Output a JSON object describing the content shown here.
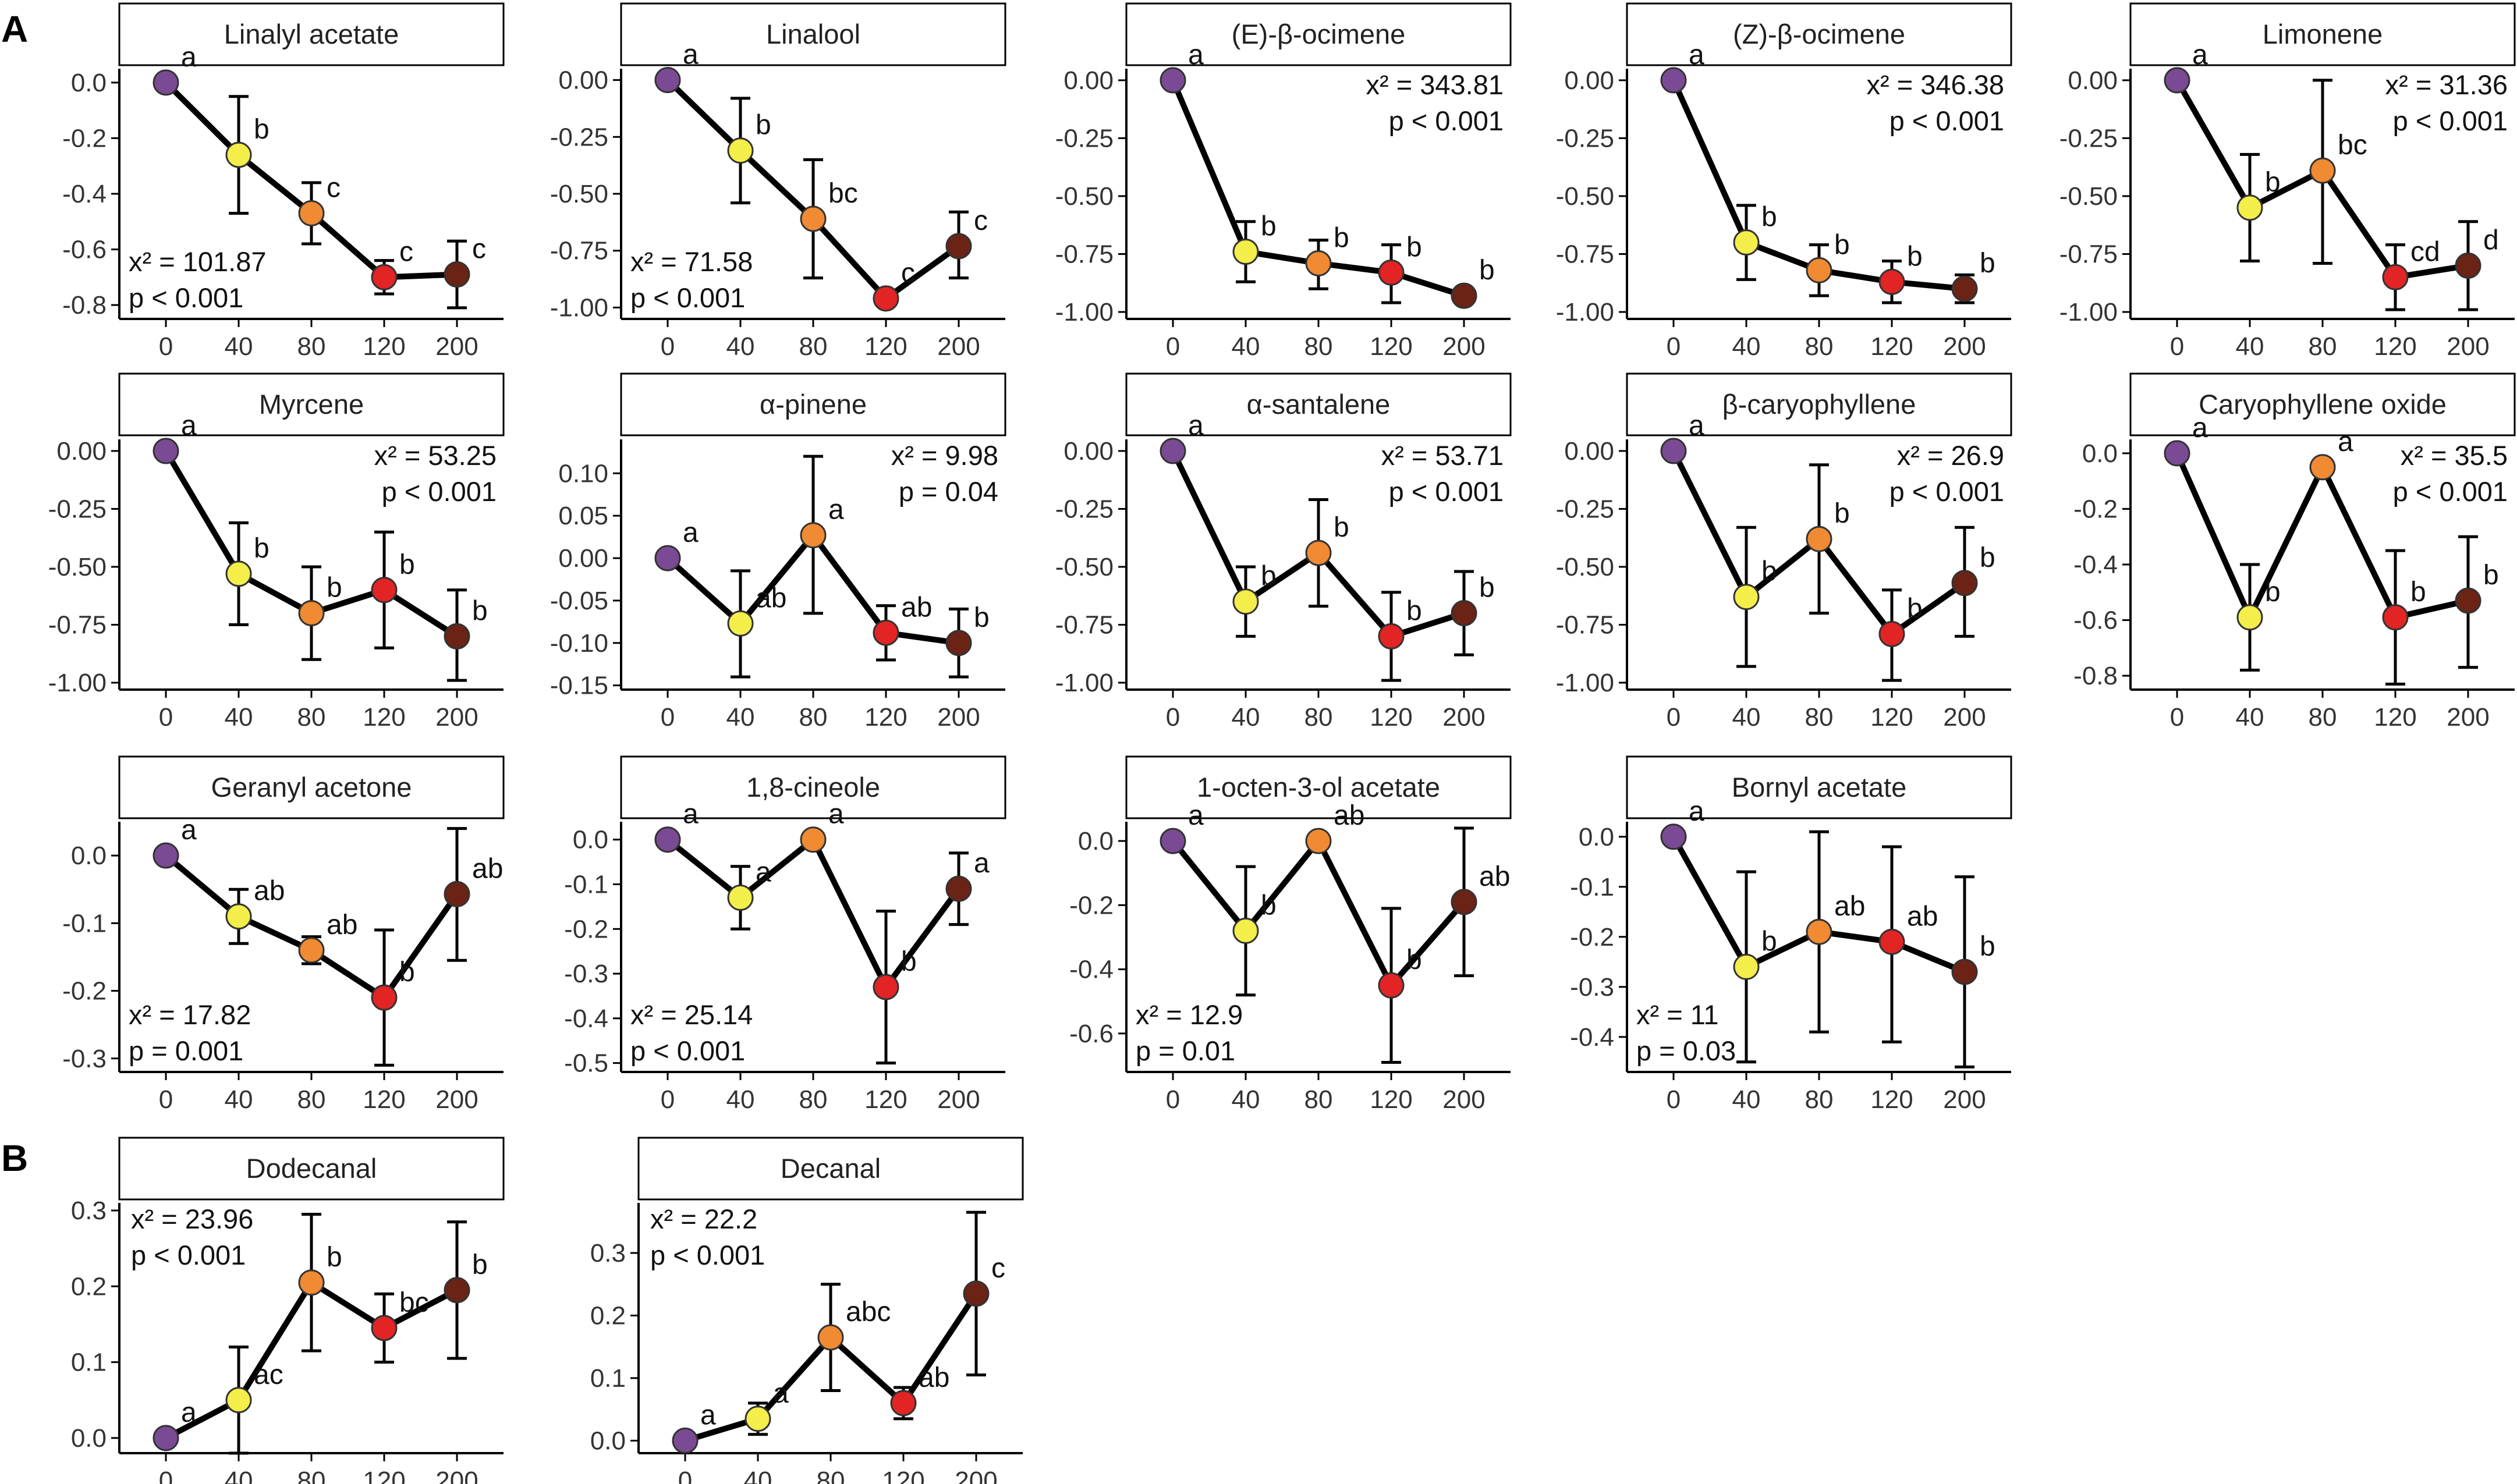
{
  "panel_labels": [
    "A",
    "B"
  ],
  "colors": {
    "0": "#7b4a94",
    "40": "#f3ee4a",
    "80": "#f08a33",
    "120": "#e22424",
    "200": "#6b2316",
    "line": "#000000",
    "strip_fill": "#ffffff"
  },
  "chart_data": [
    {
      "type": "line",
      "panel": "A",
      "title": "Linalyl acetate",
      "x": [
        0,
        40,
        80,
        120,
        200
      ],
      "values": [
        0,
        -0.26,
        -0.47,
        -0.7,
        -0.69
      ],
      "err_low": [
        0,
        -0.47,
        -0.58,
        -0.76,
        -0.81
      ],
      "err_high": [
        0,
        -0.05,
        -0.36,
        -0.64,
        -0.57
      ],
      "letters": [
        "a",
        "b",
        "c",
        "c",
        "c"
      ],
      "ylim": [
        -0.85,
        0.05
      ],
      "yticks": [
        0.0,
        -0.2,
        -0.4,
        -0.6,
        -0.8
      ],
      "ytick_labels": [
        "0.0",
        "-0.2",
        "-0.4",
        "-0.6",
        "-0.8"
      ],
      "stat_chi": "x² = 101.87",
      "stat_p": "p < 0.001",
      "stat_pos": "bottom-left"
    },
    {
      "type": "line",
      "panel": "A",
      "title": "Linalool",
      "x": [
        0,
        40,
        80,
        120,
        200
      ],
      "values": [
        0,
        -0.31,
        -0.61,
        -0.96,
        -0.73
      ],
      "err_low": [
        0,
        -0.54,
        -0.87,
        -0.96,
        -0.87
      ],
      "err_high": [
        0,
        -0.08,
        -0.35,
        -0.96,
        -0.58
      ],
      "letters": [
        "a",
        "b",
        "bc",
        "c",
        "c"
      ],
      "ylim": [
        -1.05,
        0.05
      ],
      "yticks": [
        0.0,
        -0.25,
        -0.5,
        -0.75,
        -1.0
      ],
      "ytick_labels": [
        "0.00",
        "-0.25",
        "-0.50",
        "-0.75",
        "-1.00"
      ],
      "stat_chi": "x² = 71.58",
      "stat_p": "p < 0.001",
      "stat_pos": "bottom-left"
    },
    {
      "type": "line",
      "panel": "A",
      "title": "(E)-β-ocimene",
      "x": [
        0,
        40,
        80,
        120,
        200
      ],
      "values": [
        0,
        -0.74,
        -0.79,
        -0.83,
        -0.93
      ],
      "err_low": [
        0,
        -0.87,
        -0.9,
        -0.96,
        -0.93
      ],
      "err_high": [
        0,
        -0.61,
        -0.69,
        -0.71,
        -0.93
      ],
      "letters": [
        "a",
        "b",
        "b",
        "b",
        "b"
      ],
      "ylim": [
        -1.03,
        0.05
      ],
      "yticks": [
        0.0,
        -0.25,
        -0.5,
        -0.75,
        -1.0
      ],
      "ytick_labels": [
        "0.00",
        "-0.25",
        "-0.50",
        "-0.75",
        "-1.00"
      ],
      "stat_chi": "x² = 343.81",
      "stat_p": "p < 0.001",
      "stat_pos": "top-right"
    },
    {
      "type": "line",
      "panel": "A",
      "title": "(Z)-β-ocimene",
      "x": [
        0,
        40,
        80,
        120,
        200
      ],
      "values": [
        0,
        -0.7,
        -0.82,
        -0.87,
        -0.9
      ],
      "err_low": [
        0,
        -0.86,
        -0.93,
        -0.96,
        -0.96
      ],
      "err_high": [
        0,
        -0.54,
        -0.71,
        -0.78,
        -0.84
      ],
      "letters": [
        "a",
        "b",
        "b",
        "b",
        "b"
      ],
      "ylim": [
        -1.03,
        0.05
      ],
      "yticks": [
        0.0,
        -0.25,
        -0.5,
        -0.75,
        -1.0
      ],
      "ytick_labels": [
        "0.00",
        "-0.25",
        "-0.50",
        "-0.75",
        "-1.00"
      ],
      "stat_chi": "x² = 346.38",
      "stat_p": "p < 0.001",
      "stat_pos": "top-right"
    },
    {
      "type": "line",
      "panel": "A",
      "title": "Limonene",
      "x": [
        0,
        40,
        80,
        120,
        200
      ],
      "values": [
        0,
        -0.55,
        -0.39,
        -0.85,
        -0.8
      ],
      "err_low": [
        0,
        -0.78,
        -0.79,
        -0.99,
        -0.99
      ],
      "err_high": [
        0,
        -0.32,
        0.0,
        -0.71,
        -0.61
      ],
      "letters": [
        "a",
        "b",
        "bc",
        "cd",
        "d"
      ],
      "ylim": [
        -1.03,
        0.05
      ],
      "yticks": [
        0.0,
        -0.25,
        -0.5,
        -0.75,
        -1.0
      ],
      "ytick_labels": [
        "0.00",
        "-0.25",
        "-0.50",
        "-0.75",
        "-1.00"
      ],
      "stat_chi": "x² = 31.36",
      "stat_p": "p < 0.001",
      "stat_pos": "top-right"
    },
    {
      "type": "line",
      "panel": "A",
      "title": "Myrcene",
      "x": [
        0,
        40,
        80,
        120,
        200
      ],
      "values": [
        0,
        -0.53,
        -0.7,
        -0.6,
        -0.8
      ],
      "err_low": [
        0,
        -0.75,
        -0.9,
        -0.85,
        -0.99
      ],
      "err_high": [
        0,
        -0.31,
        -0.5,
        -0.35,
        -0.6
      ],
      "letters": [
        "a",
        "b",
        "b",
        "b",
        "b"
      ],
      "ylim": [
        -1.03,
        0.05
      ],
      "yticks": [
        0.0,
        -0.25,
        -0.5,
        -0.75,
        -1.0
      ],
      "ytick_labels": [
        "0.00",
        "-0.25",
        "-0.50",
        "-0.75",
        "-1.00"
      ],
      "stat_chi": "x² = 53.25",
      "stat_p": "p < 0.001",
      "stat_pos": "top-right"
    },
    {
      "type": "line",
      "panel": "A",
      "title": "α-pinene",
      "x": [
        0,
        40,
        80,
        120,
        200
      ],
      "values": [
        0,
        -0.077,
        0.027,
        -0.088,
        -0.1
      ],
      "err_low": [
        0,
        -0.14,
        -0.065,
        -0.12,
        -0.14
      ],
      "err_high": [
        0,
        -0.015,
        0.12,
        -0.056,
        -0.06
      ],
      "letters": [
        "a",
        "ab",
        "a",
        "ab",
        "b"
      ],
      "ylim": [
        -0.155,
        0.14
      ],
      "yticks": [
        0.1,
        0.05,
        0.0,
        -0.05,
        -0.1,
        -0.15
      ],
      "ytick_labels": [
        "0.10",
        "0.05",
        "0.00",
        "-0.05",
        "-0.10",
        "-0.15"
      ],
      "stat_chi": "x² = 9.98",
      "stat_p": "p = 0.04",
      "stat_pos": "top-right"
    },
    {
      "type": "line",
      "panel": "A",
      "title": "α-santalene",
      "x": [
        0,
        40,
        80,
        120,
        200
      ],
      "values": [
        0,
        -0.65,
        -0.44,
        -0.8,
        -0.7
      ],
      "err_low": [
        0,
        -0.8,
        -0.67,
        -0.99,
        -0.88
      ],
      "err_high": [
        0,
        -0.5,
        -0.21,
        -0.61,
        -0.52
      ],
      "letters": [
        "a",
        "b",
        "b",
        "b",
        "b"
      ],
      "ylim": [
        -1.03,
        0.05
      ],
      "yticks": [
        0.0,
        -0.25,
        -0.5,
        -0.75,
        -1.0
      ],
      "ytick_labels": [
        "0.00",
        "-0.25",
        "-0.50",
        "-0.75",
        "-1.00"
      ],
      "stat_chi": "x² = 53.71",
      "stat_p": "p < 0.001",
      "stat_pos": "top-right"
    },
    {
      "type": "line",
      "panel": "A",
      "title": "β-caryophyllene",
      "x": [
        0,
        40,
        80,
        120,
        200
      ],
      "values": [
        0,
        -0.63,
        -0.38,
        -0.79,
        -0.57
      ],
      "err_low": [
        0,
        -0.93,
        -0.7,
        -0.99,
        -0.8
      ],
      "err_high": [
        0,
        -0.33,
        -0.06,
        -0.6,
        -0.33
      ],
      "letters": [
        "a",
        "b",
        "b",
        "b",
        "b"
      ],
      "ylim": [
        -1.03,
        0.05
      ],
      "yticks": [
        0.0,
        -0.25,
        -0.5,
        -0.75,
        -1.0
      ],
      "ytick_labels": [
        "0.00",
        "-0.25",
        "-0.50",
        "-0.75",
        "-1.00"
      ],
      "stat_chi": "x² = 26.9",
      "stat_p": "p < 0.001",
      "stat_pos": "top-right"
    },
    {
      "type": "line",
      "panel": "A",
      "title": "Caryophyllene oxide",
      "x": [
        0,
        40,
        80,
        120,
        200
      ],
      "values": [
        0,
        -0.59,
        -0.05,
        -0.59,
        -0.53
      ],
      "err_low": [
        0,
        -0.78,
        -0.05,
        -0.83,
        -0.77
      ],
      "err_high": [
        0,
        -0.4,
        -0.05,
        -0.35,
        -0.3
      ],
      "letters": [
        "a",
        "b",
        "a",
        "b",
        "b"
      ],
      "ylim": [
        -0.85,
        0.05
      ],
      "yticks": [
        0.0,
        -0.2,
        -0.4,
        -0.6,
        -0.8
      ],
      "ytick_labels": [
        "0.0",
        "-0.2",
        "-0.4",
        "-0.6",
        "-0.8"
      ],
      "stat_chi": "x² = 35.5",
      "stat_p": "p < 0.001",
      "stat_pos": "top-right"
    },
    {
      "type": "line",
      "panel": "A",
      "title": "Geranyl acetone",
      "x": [
        0,
        40,
        80,
        120,
        200
      ],
      "values": [
        0,
        -0.09,
        -0.14,
        -0.21,
        -0.057
      ],
      "err_low": [
        0,
        -0.13,
        -0.16,
        -0.31,
        -0.155
      ],
      "err_high": [
        0,
        -0.05,
        -0.12,
        -0.11,
        0.04
      ],
      "letters": [
        "a",
        "ab",
        "ab",
        "b",
        "ab"
      ],
      "ylim": [
        -0.32,
        0.05
      ],
      "yticks": [
        0.0,
        -0.1,
        -0.2,
        -0.3
      ],
      "ytick_labels": [
        "0.0",
        "-0.1",
        "-0.2",
        "-0.3"
      ],
      "stat_chi": "x² = 17.82",
      "stat_p": "p = 0.001",
      "stat_pos": "bottom-left"
    },
    {
      "type": "line",
      "panel": "A",
      "title": "1,8-cineole",
      "x": [
        0,
        40,
        80,
        120,
        200
      ],
      "values": [
        0,
        -0.13,
        0.0,
        -0.33,
        -0.11
      ],
      "err_low": [
        0,
        -0.2,
        0.0,
        -0.5,
        -0.19
      ],
      "err_high": [
        0,
        -0.06,
        0.0,
        -0.16,
        -0.03
      ],
      "letters": [
        "a",
        "a",
        "a",
        "b",
        "a"
      ],
      "ylim": [
        -0.52,
        0.04
      ],
      "yticks": [
        0.0,
        -0.1,
        -0.2,
        -0.3,
        -0.4,
        -0.5
      ],
      "ytick_labels": [
        "0.0",
        "-0.1",
        "-0.2",
        "-0.3",
        "-0.4",
        "-0.5"
      ],
      "stat_chi": "x² = 25.14",
      "stat_p": "p < 0.001",
      "stat_pos": "bottom-left"
    },
    {
      "type": "line",
      "panel": "A",
      "title": "1-octen-3-ol acetate",
      "x": [
        0,
        40,
        80,
        120,
        200
      ],
      "values": [
        0,
        -0.28,
        0.0,
        -0.45,
        -0.19
      ],
      "err_low": [
        0,
        -0.48,
        0.0,
        -0.69,
        -0.42
      ],
      "err_high": [
        0,
        -0.08,
        0.0,
        -0.21,
        0.04
      ],
      "letters": [
        "a",
        "b",
        "ab",
        "b",
        "ab"
      ],
      "ylim": [
        -0.72,
        0.06
      ],
      "yticks": [
        0.0,
        -0.2,
        -0.4,
        -0.6
      ],
      "ytick_labels": [
        "0.0",
        "-0.2",
        "-0.4",
        "-0.6"
      ],
      "stat_chi": "x² = 12.9",
      "stat_p": "p = 0.01",
      "stat_pos": "bottom-left"
    },
    {
      "type": "line",
      "panel": "A",
      "title": "Bornyl acetate",
      "x": [
        0,
        40,
        80,
        120,
        200
      ],
      "values": [
        0,
        -0.26,
        -0.19,
        -0.21,
        -0.27
      ],
      "err_low": [
        0,
        -0.45,
        -0.39,
        -0.41,
        -0.46
      ],
      "err_high": [
        0,
        -0.07,
        0.01,
        -0.02,
        -0.08
      ],
      "letters": [
        "a",
        "b",
        "ab",
        "ab",
        "b"
      ],
      "ylim": [
        -0.47,
        0.03
      ],
      "yticks": [
        0.0,
        -0.1,
        -0.2,
        -0.3,
        -0.4
      ],
      "ytick_labels": [
        "0.0",
        "-0.1",
        "-0.2",
        "-0.3",
        "-0.4"
      ],
      "stat_chi": "x² = 11",
      "stat_p": "p = 0.03",
      "stat_pos": "bottom-left"
    },
    {
      "type": "line",
      "panel": "B",
      "title": "Dodecanal",
      "x": [
        0,
        40,
        80,
        120,
        200
      ],
      "values": [
        0,
        0.05,
        0.205,
        0.145,
        0.195
      ],
      "err_low": [
        0,
        -0.02,
        0.115,
        0.1,
        0.105
      ],
      "err_high": [
        0,
        0.12,
        0.295,
        0.19,
        0.285
      ],
      "letters": [
        "a",
        "ac",
        "b",
        "bc",
        "b"
      ],
      "ylim": [
        -0.02,
        0.31
      ],
      "yticks": [
        0.0,
        0.1,
        0.2,
        0.3
      ],
      "ytick_labels": [
        "0.0",
        "0.1",
        "0.2",
        "0.3"
      ],
      "stat_chi": "x² = 23.96",
      "stat_p": "p < 0.001",
      "stat_pos": "top-left"
    },
    {
      "type": "line",
      "panel": "B",
      "title": "Decanal",
      "x": [
        0,
        40,
        80,
        120,
        200
      ],
      "values": [
        0,
        0.035,
        0.165,
        0.06,
        0.235
      ],
      "err_low": [
        0,
        0.01,
        0.08,
        0.035,
        0.105
      ],
      "err_high": [
        0,
        0.06,
        0.25,
        0.085,
        0.365
      ],
      "letters": [
        "a",
        "a",
        "abc",
        "ab",
        "c"
      ],
      "ylim": [
        -0.02,
        0.38
      ],
      "yticks": [
        0.0,
        0.1,
        0.2,
        0.3
      ],
      "ytick_labels": [
        "0.0",
        "0.1",
        "0.2",
        "0.3"
      ],
      "stat_chi": "x² = 22.2",
      "stat_p": "p < 0.001",
      "stat_pos": "top-left"
    }
  ]
}
